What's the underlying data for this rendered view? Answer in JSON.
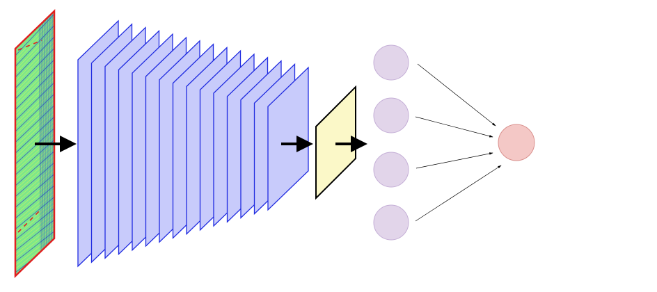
{
  "diagram": {
    "type": "neural-network-architecture",
    "stages": [
      {
        "id": "input",
        "shape": "parallelogram-panel",
        "fill": "#7de88a",
        "stroke": "#e02020",
        "texture": "dense-oblique-streaks"
      },
      {
        "id": "feature-maps",
        "shape": "stacked-parallelograms",
        "count": 15,
        "fill": "#c8cbfb",
        "stroke": "#1f2be0"
      },
      {
        "id": "pooled-map",
        "shape": "parallelogram",
        "fill": "#fbf8c8",
        "stroke": "#000000"
      },
      {
        "id": "hidden-layer",
        "shape": "circle-column",
        "count": 4,
        "fill": "#e2d5ea",
        "stroke": "#c4aed6"
      },
      {
        "id": "output-node",
        "shape": "circle",
        "count": 1,
        "fill": "#f4c8c6",
        "stroke": "#d9908d"
      }
    ],
    "connections": [
      {
        "from": "input",
        "to": "feature-maps",
        "style": "thick-arrow"
      },
      {
        "from": "feature-maps",
        "to": "pooled-map",
        "style": "thick-arrow"
      },
      {
        "from": "pooled-map",
        "to": "hidden-layer",
        "style": "thick-arrow"
      },
      {
        "from": "hidden-layer",
        "to": "output-node",
        "style": "thin-arrows",
        "count": 4
      }
    ],
    "colors": {
      "input_fill": "#7de88a",
      "input_border": "#e02020",
      "input_streak_blue": "#2a3cc8",
      "input_streak_yellow": "#d8f060",
      "feature_fill": "#c8cbfb",
      "feature_stroke": "#1f2be0",
      "pool_fill": "#fbf8c8",
      "pool_stroke": "#000000",
      "hidden_fill": "#e2d5ea",
      "hidden_stroke": "#c4aed6",
      "output_fill": "#f4c8c6",
      "output_stroke": "#d9908d",
      "arrow": "#000000"
    }
  }
}
